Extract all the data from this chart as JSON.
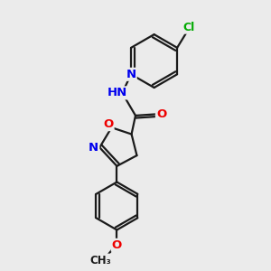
{
  "bg_color": "#ebebeb",
  "bond_color": "#1a1a1a",
  "bond_width": 1.6,
  "atom_colors": {
    "N": "#0000ee",
    "O": "#ee0000",
    "Cl": "#00aa00",
    "C": "#1a1a1a"
  },
  "font_size": 9.5,
  "font_size_cl": 9.0
}
